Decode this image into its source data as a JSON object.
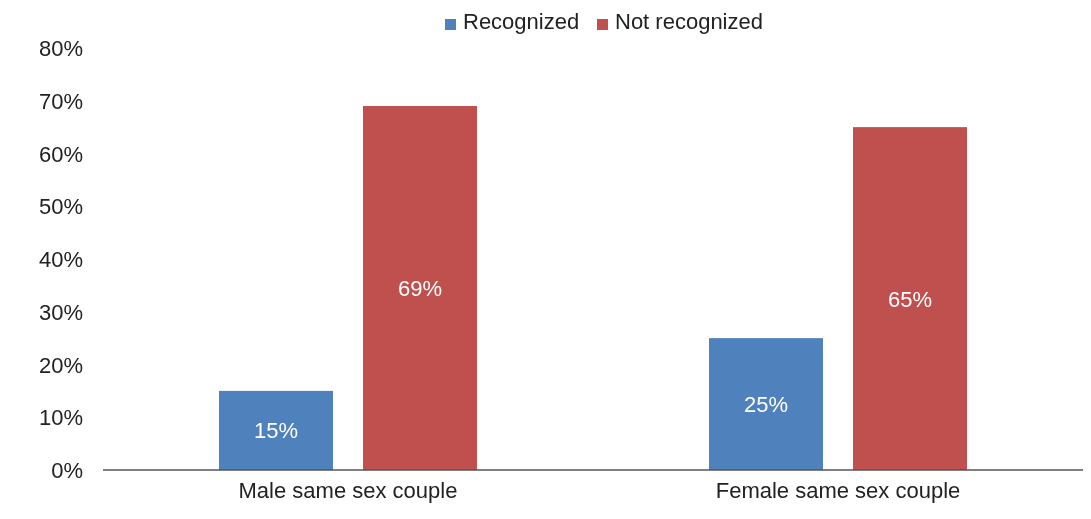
{
  "chart_data": {
    "type": "bar",
    "categories": [
      "Male same sex couple",
      "Female same sex couple"
    ],
    "series": [
      {
        "name": "Recognized",
        "color": "#4f81bd",
        "values": [
          15,
          25
        ],
        "value_labels": [
          "15%",
          "25%"
        ]
      },
      {
        "name": "Not recognized",
        "color": "#c0504d",
        "values": [
          69,
          65
        ],
        "value_labels": [
          "69%",
          "65%"
        ]
      }
    ],
    "ylim": [
      0,
      80
    ],
    "yticks": [
      {
        "value": 0,
        "label": "0%"
      },
      {
        "value": 10,
        "label": "10%"
      },
      {
        "value": 20,
        "label": "20%"
      },
      {
        "value": 30,
        "label": "30%"
      },
      {
        "value": 40,
        "label": "40%"
      },
      {
        "value": 50,
        "label": "50%"
      },
      {
        "value": 60,
        "label": "60%"
      },
      {
        "value": 70,
        "label": "70%"
      },
      {
        "value": 80,
        "label": "80%"
      }
    ],
    "grid": false,
    "legend": "top"
  }
}
